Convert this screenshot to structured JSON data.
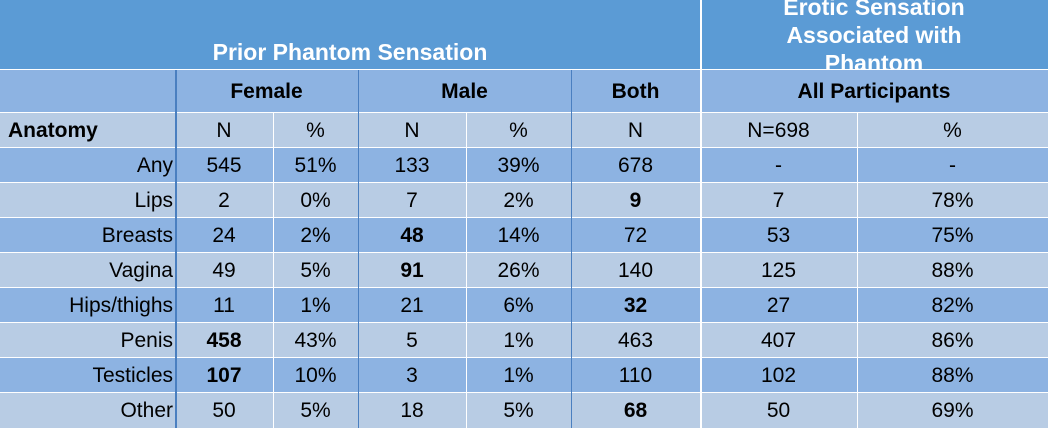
{
  "chart_data": {
    "type": "table",
    "header": {
      "prior_phantom_title": "Prior Phantom Sensation",
      "erotic_title": "Erotic Sensation Associated with Phantom",
      "groups": [
        "Female",
        "Male",
        "Both",
        "All Participants"
      ],
      "columns": [
        "Anatomy",
        "N",
        "%",
        "N",
        "%",
        "N",
        "N=698",
        "%"
      ]
    },
    "rows": [
      {
        "anatomy": "Any",
        "female_n": "545",
        "female_pct": "51%",
        "male_n": "133",
        "male_pct": "39%",
        "both_n": "678",
        "all_n": "-",
        "all_pct": "-"
      },
      {
        "anatomy": "Lips",
        "female_n": "2",
        "female_pct": "0%",
        "male_n": "7",
        "male_pct": "2%",
        "both_n": "9",
        "all_n": "7",
        "all_pct": "78%"
      },
      {
        "anatomy": "Breasts",
        "female_n": "24",
        "female_pct": "2%",
        "male_n": "48",
        "male_pct": "14%",
        "both_n": "72",
        "all_n": "53",
        "all_pct": "75%"
      },
      {
        "anatomy": "Vagina",
        "female_n": "49",
        "female_pct": "5%",
        "male_n": "91",
        "male_pct": "26%",
        "both_n": "140",
        "all_n": "125",
        "all_pct": "88%"
      },
      {
        "anatomy": "Hips/thighs",
        "female_n": "11",
        "female_pct": "1%",
        "male_n": "21",
        "male_pct": "6%",
        "both_n": "32",
        "all_n": "27",
        "all_pct": "82%"
      },
      {
        "anatomy": "Penis",
        "female_n": "458",
        "female_pct": "43%",
        "male_n": "5",
        "male_pct": "1%",
        "both_n": "463",
        "all_n": "407",
        "all_pct": "86%"
      },
      {
        "anatomy": "Testicles",
        "female_n": "107",
        "female_pct": "10%",
        "male_n": "3",
        "male_pct": "1%",
        "both_n": "110",
        "all_n": "102",
        "all_pct": "88%"
      },
      {
        "anatomy": "Other",
        "female_n": "50",
        "female_pct": "5%",
        "male_n": "18",
        "male_pct": "5%",
        "both_n": "68",
        "all_n": "50",
        "all_pct": "69%"
      }
    ],
    "bold_cells": [
      {
        "row": "Lips",
        "col": "both_n"
      },
      {
        "row": "Breasts",
        "col": "male_n"
      },
      {
        "row": "Vagina",
        "col": "male_n"
      },
      {
        "row": "Hips/thighs",
        "col": "both_n"
      },
      {
        "row": "Penis",
        "col": "female_n"
      },
      {
        "row": "Testicles",
        "col": "female_n"
      },
      {
        "row": "Other",
        "col": "both_n"
      }
    ],
    "colors": {
      "title_band": "#5b9bd5",
      "group_band": "#8db3e2",
      "col_header_band": "#b8cce4",
      "row_dark": "#8db3e2",
      "row_light": "#b8cce4",
      "title_text": "#ffffff"
    }
  }
}
